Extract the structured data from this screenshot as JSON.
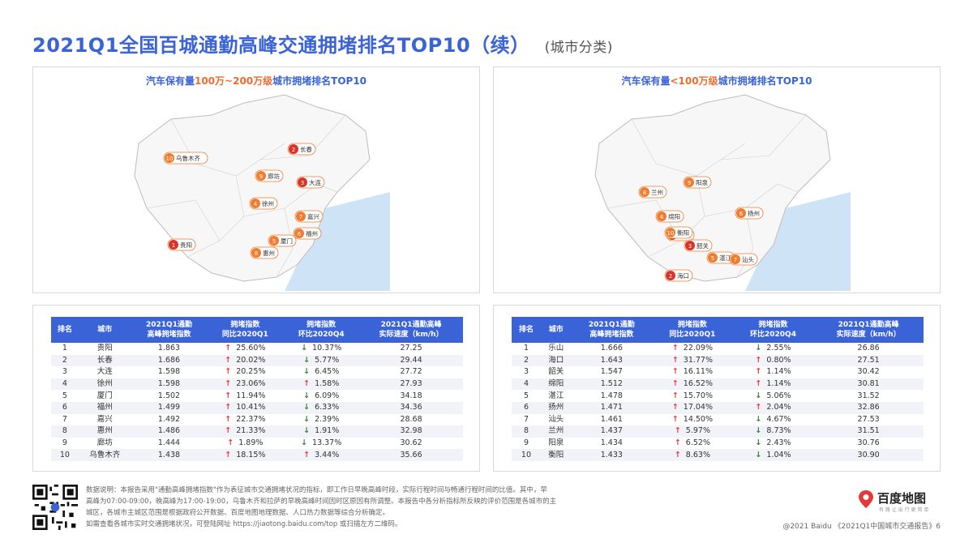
{
  "page": {
    "title": "2021Q1全国百城通勤高峰交通拥堵排名TOP10（续）",
    "subtitle": "(城市分类)"
  },
  "map_left": {
    "title_pre": "汽车保有量",
    "title_hl": "100万~200万级",
    "title_post": "城市拥堵排名TOP10",
    "cities": [
      {
        "rank": "1",
        "name": "贵阳"
      },
      {
        "rank": "2",
        "name": "长春"
      },
      {
        "rank": "3",
        "name": "大连"
      },
      {
        "rank": "4",
        "name": "徐州"
      },
      {
        "rank": "5",
        "name": "厦门"
      },
      {
        "rank": "6",
        "name": "福州"
      },
      {
        "rank": "7",
        "name": "嘉兴"
      },
      {
        "rank": "8",
        "name": "惠州"
      },
      {
        "rank": "9",
        "name": "廊坊"
      },
      {
        "rank": "10",
        "name": "乌鲁木齐"
      }
    ]
  },
  "map_right": {
    "title_pre": "汽车保有量",
    "title_hl": "<100万级",
    "title_post": "城市拥堵排名TOP10",
    "cities": [
      {
        "rank": "1",
        "name": "乐山"
      },
      {
        "rank": "2",
        "name": "海口"
      },
      {
        "rank": "3",
        "name": "韶关"
      },
      {
        "rank": "4",
        "name": "绵阳"
      },
      {
        "rank": "5",
        "name": "湛江"
      },
      {
        "rank": "6",
        "name": "扬州"
      },
      {
        "rank": "7",
        "name": "汕头"
      },
      {
        "rank": "8",
        "name": "兰州"
      },
      {
        "rank": "9",
        "name": "阳泉"
      },
      {
        "rank": "10",
        "name": "衡阳"
      }
    ]
  },
  "table_left": {
    "headers": [
      "排名",
      "城市",
      "2021Q1通勤\n高峰拥堵指数",
      "拥堵指数\n同比2020Q1",
      "拥堵指数\n环比2020Q4",
      "2021Q1通勤高峰\n实际速度（km/h）"
    ],
    "rows": [
      {
        "rank": "1",
        "city": "贵阳",
        "index": "1.863",
        "yoy_dir": "up",
        "yoy": "25.60%",
        "qoq_dir": "down",
        "qoq": "10.37%",
        "speed": "27.25"
      },
      {
        "rank": "2",
        "city": "长春",
        "index": "1.686",
        "yoy_dir": "up",
        "yoy": "20.02%",
        "qoq_dir": "down",
        "qoq": "5.77%",
        "speed": "29.44"
      },
      {
        "rank": "3",
        "city": "大连",
        "index": "1.598",
        "yoy_dir": "up",
        "yoy": "20.25%",
        "qoq_dir": "down",
        "qoq": "6.45%",
        "speed": "27.72"
      },
      {
        "rank": "4",
        "city": "徐州",
        "index": "1.598",
        "yoy_dir": "up",
        "yoy": "23.06%",
        "qoq_dir": "up",
        "qoq": "1.58%",
        "speed": "27.93"
      },
      {
        "rank": "5",
        "city": "厦门",
        "index": "1.502",
        "yoy_dir": "up",
        "yoy": "11.94%",
        "qoq_dir": "down",
        "qoq": "6.09%",
        "speed": "34.18"
      },
      {
        "rank": "6",
        "city": "福州",
        "index": "1.499",
        "yoy_dir": "up",
        "yoy": "10.41%",
        "qoq_dir": "down",
        "qoq": "6.33%",
        "speed": "34.36"
      },
      {
        "rank": "7",
        "city": "嘉兴",
        "index": "1.492",
        "yoy_dir": "up",
        "yoy": "22.37%",
        "qoq_dir": "down",
        "qoq": "2.39%",
        "speed": "28.68"
      },
      {
        "rank": "8",
        "city": "惠州",
        "index": "1.486",
        "yoy_dir": "up",
        "yoy": "21.33%",
        "qoq_dir": "down",
        "qoq": "1.91%",
        "speed": "32.98"
      },
      {
        "rank": "9",
        "city": "廊坊",
        "index": "1.444",
        "yoy_dir": "up",
        "yoy": "1.89%",
        "qoq_dir": "down",
        "qoq": "13.37%",
        "speed": "30.62"
      },
      {
        "rank": "10",
        "city": "乌鲁木齐",
        "index": "1.438",
        "yoy_dir": "up",
        "yoy": "18.15%",
        "qoq_dir": "up",
        "qoq": "3.44%",
        "speed": "35.66"
      }
    ]
  },
  "table_right": {
    "headers": [
      "排名",
      "城市",
      "2021Q1通勤\n高峰拥堵指数",
      "拥堵指数\n同比2020Q1",
      "拥堵指数\n环比2020Q4",
      "2021Q1通勤高峰\n实际速度（km/h）"
    ],
    "rows": [
      {
        "rank": "1",
        "city": "乐山",
        "index": "1.666",
        "yoy_dir": "up",
        "yoy": "22.09%",
        "qoq_dir": "down",
        "qoq": "2.55%",
        "speed": "26.86"
      },
      {
        "rank": "2",
        "city": "海口",
        "index": "1.643",
        "yoy_dir": "up",
        "yoy": "31.77%",
        "qoq_dir": "up",
        "qoq": "0.80%",
        "speed": "27.51"
      },
      {
        "rank": "3",
        "city": "韶关",
        "index": "1.547",
        "yoy_dir": "up",
        "yoy": "16.11%",
        "qoq_dir": "up",
        "qoq": "1.14%",
        "speed": "30.42"
      },
      {
        "rank": "4",
        "city": "绵阳",
        "index": "1.512",
        "yoy_dir": "up",
        "yoy": "16.52%",
        "qoq_dir": "up",
        "qoq": "1.14%",
        "speed": "30.81"
      },
      {
        "rank": "5",
        "city": "湛江",
        "index": "1.478",
        "yoy_dir": "up",
        "yoy": "15.70%",
        "qoq_dir": "down",
        "qoq": "5.06%",
        "speed": "31.52"
      },
      {
        "rank": "6",
        "city": "扬州",
        "index": "1.471",
        "yoy_dir": "up",
        "yoy": "17.04%",
        "qoq_dir": "up",
        "qoq": "2.04%",
        "speed": "32.86"
      },
      {
        "rank": "7",
        "city": "汕头",
        "index": "1.461",
        "yoy_dir": "up",
        "yoy": "14.50%",
        "qoq_dir": "down",
        "qoq": "4.67%",
        "speed": "27.53"
      },
      {
        "rank": "8",
        "city": "兰州",
        "index": "1.437",
        "yoy_dir": "up",
        "yoy": "5.97%",
        "qoq_dir": "down",
        "qoq": "8.73%",
        "speed": "31.51"
      },
      {
        "rank": "9",
        "city": "阳泉",
        "index": "1.434",
        "yoy_dir": "up",
        "yoy": "6.52%",
        "qoq_dir": "down",
        "qoq": "2.43%",
        "speed": "30.76"
      },
      {
        "rank": "10",
        "city": "衡阳",
        "index": "1.433",
        "yoy_dir": "up",
        "yoy": "8.63%",
        "qoq_dir": "down",
        "qoq": "1.04%",
        "speed": "30.90"
      }
    ]
  },
  "footer": {
    "note_line1": "数据说明：本报告采用\"通勤高峰拥堵指数\"作为表征城市交通拥堵状况的指标，即工作日早晚高峰时段，实际行程时间与畅通行程时间的比值。其中，早",
    "note_line2": "高峰为07:00-09:00，晚高峰为17:00-19:00，乌鲁木齐和拉萨的早晚高峰时间因时区原因有所调整。本报告中各分析指标所反映的评价范围是各城市的主",
    "note_line3": "城区，各城市主城区范围是根据政府公开数据、百度地图地理数据、人口热力数据等综合分析确定。",
    "note_line4": "如需查看各城市实时交通拥堵状况，可登陆网址 https://jiaotong.baidu.com/top 或扫描左方二维码。",
    "logo_text": "百度地图",
    "logo_tagline": "有 路 让 出 行 更 简 单",
    "copyright": "@2021 Baidu 《2021Q1中国城市交通报告》6"
  },
  "colors": {
    "title_blue": "#3a63d8",
    "highlight_orange": "#ef6c2f",
    "marker_red": "#d9342b",
    "marker_orange": "#ef7c2f",
    "up_red": "#e53935",
    "down_green": "#2e7d32"
  }
}
